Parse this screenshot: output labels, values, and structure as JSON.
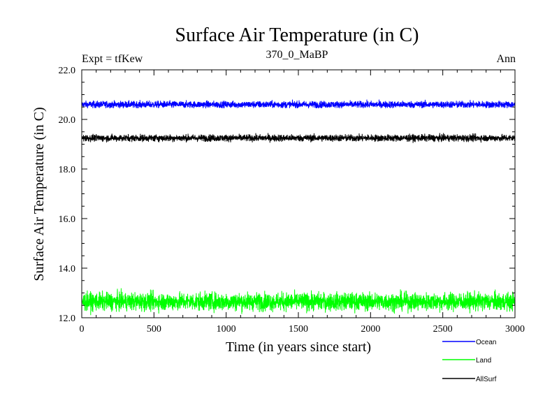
{
  "chart_data": {
    "type": "line",
    "title": "Surface Air Temperature (in C)",
    "subtitle_left": "Expt = tfKew",
    "subtitle_center": "370_0_MaBP",
    "subtitle_right": "Ann",
    "xlabel": "Time (in years since start)",
    "ylabel": "Surface Air Temperature (in C)",
    "xlim": [
      0,
      3000
    ],
    "ylim": [
      12.0,
      22.0
    ],
    "xticks": [
      0,
      500,
      1000,
      1500,
      2000,
      2500,
      3000
    ],
    "xtick_labels": [
      "0",
      "500",
      "1000",
      "1500",
      "2000",
      "2500",
      "3000"
    ],
    "yticks": [
      12.0,
      14.0,
      16.0,
      18.0,
      20.0,
      22.0
    ],
    "ytick_labels": [
      "12.0",
      "14.0",
      "16.0",
      "18.0",
      "20.0",
      "22.0"
    ],
    "grid": false,
    "legend_position": "bottom-right, outside plot",
    "series": [
      {
        "name": "Ocean",
        "color": "#0000ff",
        "mean": 20.6,
        "noise": 0.07,
        "range": [
          20.45,
          20.8
        ]
      },
      {
        "name": "Land",
        "color": "#00ff00",
        "mean": 12.65,
        "noise": 0.18,
        "range": [
          12.1,
          13.2
        ]
      },
      {
        "name": "AllSurf",
        "color": "#000000",
        "mean": 19.25,
        "noise": 0.07,
        "range": [
          19.05,
          19.45
        ]
      }
    ],
    "n_points": 3000
  }
}
